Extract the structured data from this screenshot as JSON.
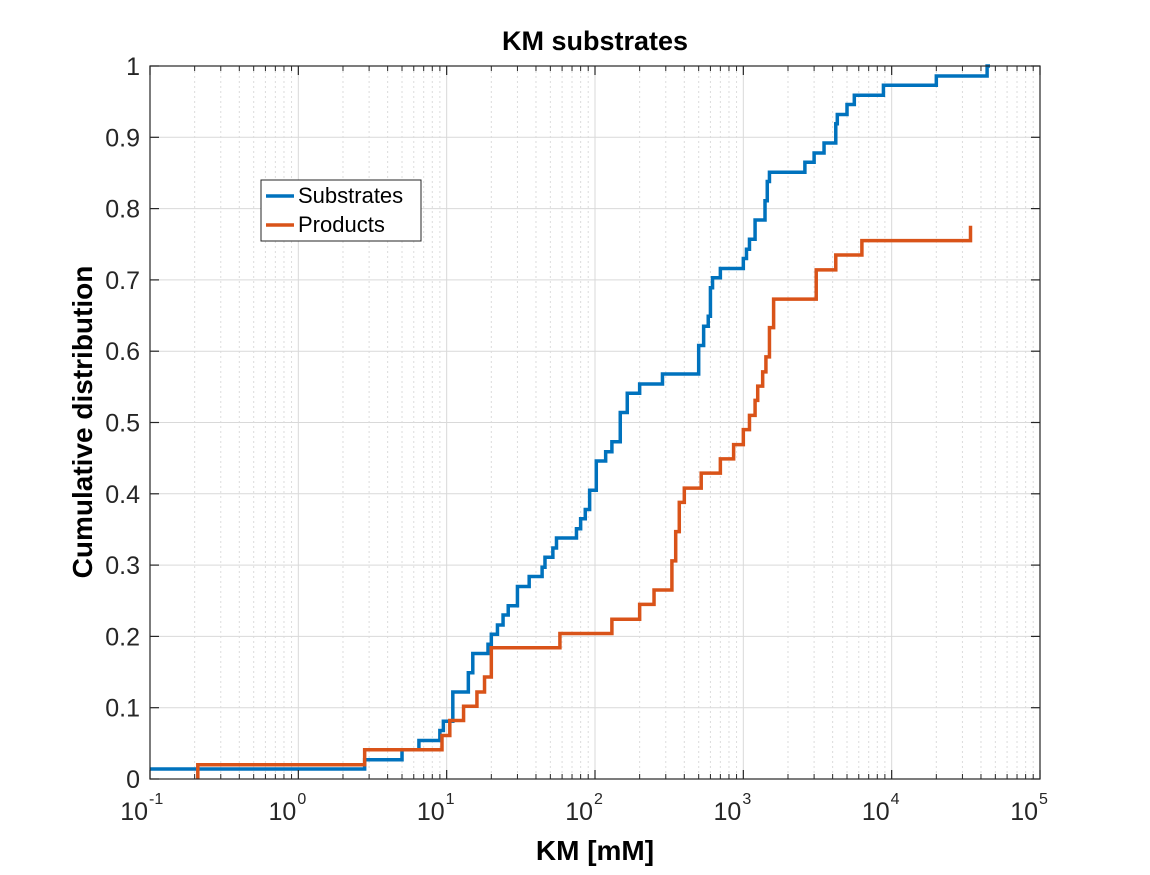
{
  "chart_data": {
    "type": "line",
    "title": "KM substrates",
    "xlabel": "KM [mM]",
    "ylabel": "Cumulative distribution",
    "x_scale": "log",
    "xlim": [
      0.1,
      100000
    ],
    "ylim": [
      0,
      1
    ],
    "x_ticks": [
      {
        "value": 0.1,
        "base": "10",
        "exp": "-1"
      },
      {
        "value": 1,
        "base": "10",
        "exp": "0"
      },
      {
        "value": 10,
        "base": "10",
        "exp": "1"
      },
      {
        "value": 100,
        "base": "10",
        "exp": "2"
      },
      {
        "value": 1000,
        "base": "10",
        "exp": "3"
      },
      {
        "value": 10000,
        "base": "10",
        "exp": "4"
      },
      {
        "value": 100000,
        "base": "10",
        "exp": "5"
      }
    ],
    "y_ticks": [
      "0",
      "0.1",
      "0.2",
      "0.3",
      "0.4",
      "0.5",
      "0.6",
      "0.7",
      "0.8",
      "0.9",
      "1"
    ],
    "grid": true,
    "minor_grid": true,
    "legend_position": "upper-left",
    "series": [
      {
        "name": "Substrates",
        "color": "#0072BD",
        "x": [
          0.1,
          2.8,
          5,
          6.5,
          9,
          9.5,
          11,
          14,
          15,
          19,
          20,
          22,
          24,
          26,
          30,
          36,
          44,
          46,
          52,
          55,
          75,
          80,
          86,
          92,
          102,
          118,
          130,
          148,
          165,
          200,
          285,
          500,
          540,
          580,
          600,
          620,
          700,
          1000,
          1050,
          1100,
          1200,
          1400,
          1450,
          1500,
          2600,
          3000,
          3500,
          4200,
          4300,
          5000,
          5600,
          6500,
          8800,
          20000,
          44000,
          46000
        ],
        "y": [
          0.014,
          0.027,
          0.041,
          0.054,
          0.068,
          0.081,
          0.122,
          0.149,
          0.176,
          0.189,
          0.203,
          0.216,
          0.23,
          0.243,
          0.27,
          0.284,
          0.297,
          0.311,
          0.324,
          0.338,
          0.351,
          0.365,
          0.378,
          0.405,
          0.446,
          0.459,
          0.473,
          0.514,
          0.541,
          0.554,
          0.568,
          0.608,
          0.635,
          0.649,
          0.689,
          0.703,
          0.716,
          0.73,
          0.743,
          0.757,
          0.784,
          0.811,
          0.838,
          0.851,
          0.865,
          0.878,
          0.892,
          0.919,
          0.932,
          0.946,
          0.959,
          0.959,
          0.973,
          0.986,
          1.0,
          1.0
        ]
      },
      {
        "name": "Products",
        "color": "#D95319",
        "x": [
          0.21,
          2.8,
          9.3,
          10.5,
          13,
          16,
          18,
          20,
          58,
          130,
          200,
          250,
          330,
          350,
          370,
          400,
          520,
          700,
          860,
          1000,
          1100,
          1200,
          1250,
          1350,
          1420,
          1500,
          1600,
          3100,
          4200,
          6300,
          34000
        ],
        "y": [
          0.02,
          0.041,
          0.061,
          0.082,
          0.102,
          0.122,
          0.143,
          0.184,
          0.204,
          0.224,
          0.245,
          0.265,
          0.306,
          0.347,
          0.388,
          0.408,
          0.429,
          0.449,
          0.469,
          0.49,
          0.51,
          0.531,
          0.551,
          0.571,
          0.592,
          0.633,
          0.673,
          0.714,
          0.735,
          0.755,
          0.776
        ]
      }
    ]
  }
}
